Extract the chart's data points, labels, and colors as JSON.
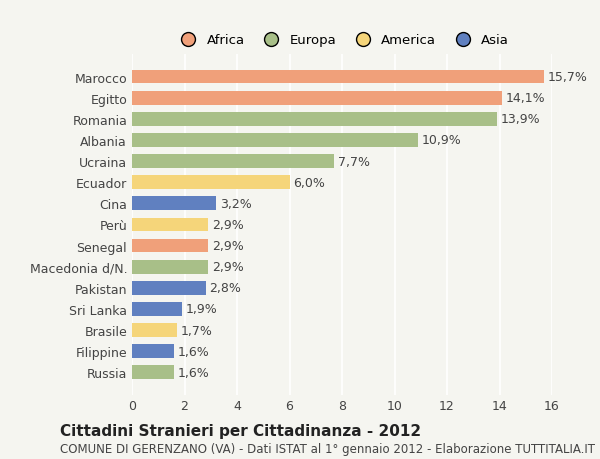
{
  "countries": [
    "Marocco",
    "Egitto",
    "Romania",
    "Albania",
    "Ucraina",
    "Ecuador",
    "Cina",
    "Perù",
    "Senegal",
    "Macedonia d/N.",
    "Pakistan",
    "Sri Lanka",
    "Brasile",
    "Filippine",
    "Russia"
  ],
  "values": [
    15.7,
    14.1,
    13.9,
    10.9,
    7.7,
    6.0,
    3.2,
    2.9,
    2.9,
    2.9,
    2.8,
    1.9,
    1.7,
    1.6,
    1.6
  ],
  "categories": [
    "Africa",
    "Africa",
    "Europa",
    "Europa",
    "Europa",
    "America",
    "Asia",
    "America",
    "Africa",
    "Europa",
    "Asia",
    "Asia",
    "America",
    "Asia",
    "Europa"
  ],
  "colors": {
    "Africa": "#F0A07A",
    "Europa": "#A8BF88",
    "America": "#F5D57A",
    "Asia": "#6080C0"
  },
  "legend_order": [
    "Africa",
    "Europa",
    "America",
    "Asia"
  ],
  "legend_colors": [
    "#F0A07A",
    "#A8BF88",
    "#F5D57A",
    "#6080C0"
  ],
  "xlim": [
    0,
    16
  ],
  "xticks": [
    0,
    2,
    4,
    6,
    8,
    10,
    12,
    14,
    16
  ],
  "title": "Cittadini Stranieri per Cittadinanza - 2012",
  "subtitle": "COMUNE DI GERENZANO (VA) - Dati ISTAT al 1° gennaio 2012 - Elaborazione TUTTITALIA.IT",
  "background_color": "#f5f5f0",
  "bar_height": 0.65,
  "label_fontsize": 9,
  "tick_fontsize": 9,
  "title_fontsize": 11,
  "subtitle_fontsize": 8.5
}
